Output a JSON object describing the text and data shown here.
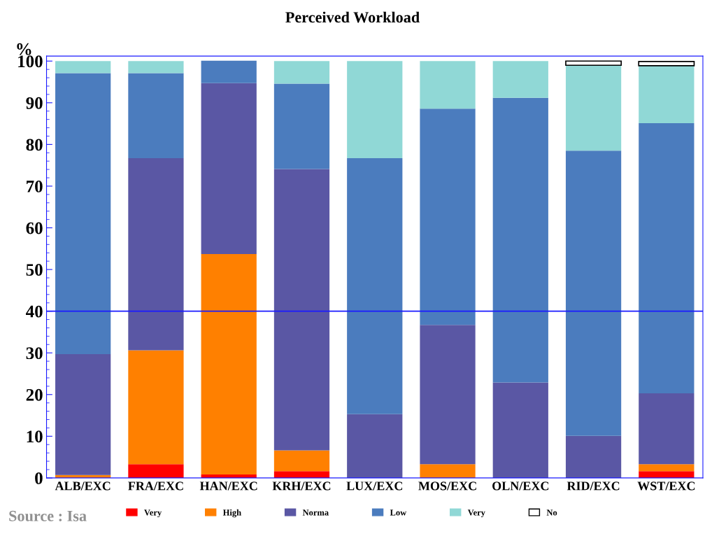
{
  "chart_data": {
    "type": "bar",
    "title": "Perceived Workload",
    "ylabel": "%",
    "stacked": true,
    "categories": [
      "ALB/EXC",
      "FRA/EXC",
      "HAN/EXC",
      "KRH/EXC",
      "LUX/EXC",
      "MOS/EXC",
      "OLN/EXC",
      "RID/EXC",
      "WST/EXC"
    ],
    "series": [
      {
        "name": "Very",
        "color": "#ff0000",
        "values": [
          0,
          3.3,
          0.8,
          1.6,
          0,
          0,
          0,
          0,
          1.6
        ]
      },
      {
        "name": "High",
        "color": "#ff8000",
        "values": [
          0.7,
          27.3,
          52.9,
          5.0,
          0,
          3.3,
          0,
          0,
          1.7
        ]
      },
      {
        "name": "Norma",
        "color": "#5a57a4",
        "values": [
          29.0,
          46.1,
          41.0,
          67.5,
          15.3,
          33.4,
          22.9,
          10.1,
          17.0
        ]
      },
      {
        "name": "Low",
        "color": "#4b7cbe",
        "values": [
          67.4,
          20.4,
          5.4,
          20.5,
          61.4,
          51.9,
          68.3,
          68.4,
          64.8
        ]
      },
      {
        "name": "Very",
        "color": "#90d8d6",
        "values": [
          2.9,
          2.9,
          0,
          5.4,
          23.3,
          11.4,
          8.8,
          20.5,
          13.8
        ]
      },
      {
        "name": "No",
        "color": "#ffffff",
        "values": [
          0,
          0,
          0,
          0,
          0,
          0,
          0,
          1.0,
          1.0
        ]
      }
    ],
    "ylim": [
      0,
      101.2
    ],
    "yticks": [
      0,
      10,
      20,
      30,
      40,
      50,
      60,
      70,
      80,
      90,
      100
    ],
    "ref_lines": [
      {
        "axis": "y",
        "value": 40,
        "color": "#1a1aff"
      }
    ],
    "grid": false,
    "legend": "bottom",
    "annotations": [
      "Source : Isa"
    ]
  }
}
